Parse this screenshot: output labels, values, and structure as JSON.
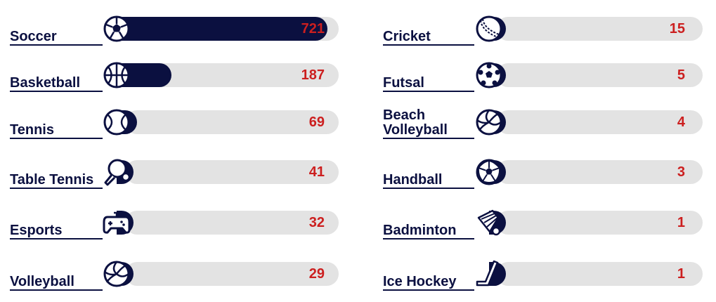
{
  "colors": {
    "bar": "#0b1040",
    "track": "#e3e3e3",
    "value": "#cc1f1f",
    "label": "#0b1040"
  },
  "chart_data": {
    "type": "bar",
    "orientation": "horizontal",
    "title": "",
    "xlabel": "",
    "ylabel": "",
    "columns": 2,
    "categories": [
      "Soccer",
      "Basketball",
      "Tennis",
      "Table Tennis",
      "Esports",
      "Volleyball",
      "Cricket",
      "Futsal",
      "Beach\nVolleyball",
      "Handball",
      "Badminton",
      "Ice Hockey"
    ],
    "values": [
      721,
      187,
      69,
      41,
      32,
      29,
      15,
      5,
      4,
      3,
      1,
      1
    ],
    "icons": [
      "soccer-ball-icon",
      "basketball-icon",
      "tennis-ball-icon",
      "table-tennis-paddle-icon",
      "game-controller-icon",
      "volleyball-icon",
      "cricket-ball-icon",
      "futsal-ball-icon",
      "beach-volleyball-icon",
      "handball-icon",
      "shuttlecock-icon",
      "ice-hockey-stick-icon"
    ]
  }
}
